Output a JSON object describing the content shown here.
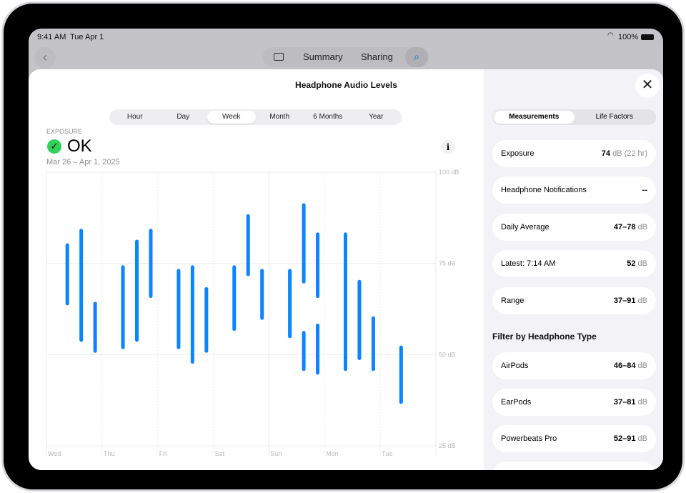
{
  "status": {
    "time": "9:41 AM",
    "date": "Tue Apr 1",
    "battery": "100%"
  },
  "nav": {
    "summary": "Summary",
    "sharing": "Sharing"
  },
  "sheet": {
    "title": "Headphone Audio Levels"
  },
  "ranges": [
    "Hour",
    "Day",
    "Week",
    "Month",
    "6 Months",
    "Year"
  ],
  "selected_range": "Week",
  "summary": {
    "label": "EXPOSURE",
    "status": "OK",
    "dates": "Mar 26 – Apr 1, 2025",
    "status_color": "#30d158"
  },
  "tabs": {
    "measurements": "Measurements",
    "life_factors": "Life Factors"
  },
  "measurements": [
    {
      "label": "Exposure",
      "value": "74",
      "unit": "dB (22 hr)"
    },
    {
      "label": "Headphone Notifications",
      "value": "--",
      "unit": ""
    },
    {
      "label": "Daily Average",
      "value": "47–78",
      "unit": "dB"
    },
    {
      "label": "Latest: 7:14 AM",
      "value": "52",
      "unit": "dB"
    },
    {
      "label": "Range",
      "value": "37–91",
      "unit": "dB"
    }
  ],
  "filter": {
    "title": "Filter by Headphone Type",
    "items": [
      {
        "label": "AirPods",
        "value": "46–84",
        "unit": "dB"
      },
      {
        "label": "EarPods",
        "value": "37–81",
        "unit": "dB"
      },
      {
        "label": "Powerbeats Pro",
        "value": "52–91",
        "unit": "dB"
      }
    ]
  },
  "chart_data": {
    "type": "range-bar",
    "color": "#0a84ff",
    "ylim": [
      25,
      100
    ],
    "yticks": [
      "100 dB",
      "75 dB",
      "50 dB",
      "25 dB"
    ],
    "ytick_values": [
      100,
      75,
      50,
      25
    ],
    "xticks": [
      "Wed",
      "Thu",
      "Fri",
      "Sat",
      "Sun",
      "Mon",
      "Tue"
    ],
    "grid": true,
    "bars": [
      {
        "day": "Wed",
        "hour": 6,
        "low": 64,
        "high": 80
      },
      {
        "day": "Wed",
        "hour": 12,
        "low": 54,
        "high": 84
      },
      {
        "day": "Wed",
        "hour": 18,
        "low": 51,
        "high": 64
      },
      {
        "day": "Thu",
        "hour": 6,
        "low": 52,
        "high": 74
      },
      {
        "day": "Thu",
        "hour": 12,
        "low": 54,
        "high": 81
      },
      {
        "day": "Thu",
        "hour": 18,
        "low": 66,
        "high": 84
      },
      {
        "day": "Fri",
        "hour": 6,
        "low": 52,
        "high": 73
      },
      {
        "day": "Fri",
        "hour": 12,
        "low": 48,
        "high": 74
      },
      {
        "day": "Fri",
        "hour": 18,
        "low": 51,
        "high": 68
      },
      {
        "day": "Sat",
        "hour": 6,
        "low": 57,
        "high": 74
      },
      {
        "day": "Sat",
        "hour": 12,
        "low": 72,
        "high": 88
      },
      {
        "day": "Sat",
        "hour": 18,
        "low": 60,
        "high": 73
      },
      {
        "day": "Sun",
        "hour": 6,
        "low": 55,
        "high": 73
      },
      {
        "day": "Sun",
        "hour": 12,
        "low": 70,
        "high": 91
      },
      {
        "day": "Sun",
        "hour": 12,
        "low": 46,
        "high": 56
      },
      {
        "day": "Sun",
        "hour": 18,
        "low": 66,
        "high": 83
      },
      {
        "day": "Sun",
        "hour": 18,
        "low": 45,
        "high": 58
      },
      {
        "day": "Mon",
        "hour": 6,
        "low": 46,
        "high": 83
      },
      {
        "day": "Mon",
        "hour": 12,
        "low": 49,
        "high": 70
      },
      {
        "day": "Mon",
        "hour": 18,
        "low": 46,
        "high": 60
      },
      {
        "day": "Tue",
        "hour": 6,
        "low": 37,
        "high": 52
      }
    ]
  }
}
